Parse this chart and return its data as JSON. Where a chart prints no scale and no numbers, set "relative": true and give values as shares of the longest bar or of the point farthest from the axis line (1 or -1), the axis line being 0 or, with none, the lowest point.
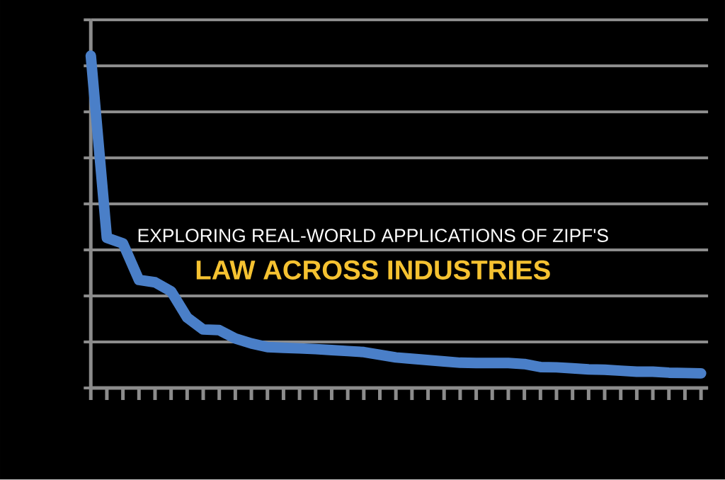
{
  "chart_data": {
    "type": "line",
    "title": "EXPLORING REAL-WORLD APPLICATIONS OF ZIPF'S",
    "subtitle": "LAW ACROSS INDUSTRIES",
    "categories": [
      null,
      null,
      null,
      null,
      null,
      null,
      null,
      null,
      null,
      null,
      null,
      null,
      null,
      null,
      null,
      null,
      null,
      null,
      null,
      null,
      null,
      null,
      null,
      null,
      null,
      null,
      null,
      null,
      null,
      null,
      null,
      null,
      null,
      null,
      null,
      null,
      null,
      null,
      null
    ],
    "values": [
      1,
      0.452,
      0.435,
      0.325,
      0.318,
      0.291,
      0.212,
      0.176,
      0.174,
      0.149,
      0.134,
      0.123,
      0.121,
      0.119,
      0.117,
      0.114,
      0.111,
      0.108,
      0.1,
      0.092,
      0.088,
      0.084,
      0.08,
      0.076,
      0.075,
      0.075,
      0.075,
      0.072,
      0.063,
      0.062,
      0.059,
      0.056,
      0.055,
      0.052,
      0.049,
      0.049,
      0.046,
      0.045,
      0.044
    ],
    "color": "#4a7fc8",
    "relative": true,
    "grid": "y"
  }
}
